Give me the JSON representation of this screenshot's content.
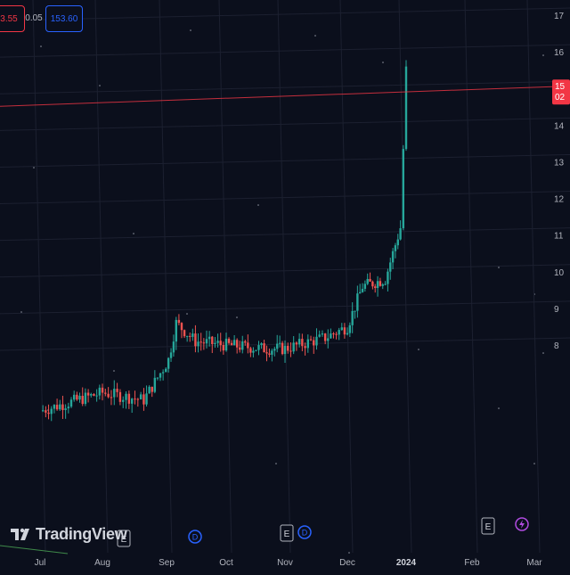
{
  "order_panel": {
    "sell_price": "3.55",
    "spread": "0.05",
    "buy_price": "153.60"
  },
  "watermark": {
    "text": "TradingView"
  },
  "price_axis": {
    "labels": [
      "17",
      "16",
      "15",
      "14",
      "13",
      "12",
      "11",
      "10",
      "9",
      "8"
    ],
    "current_label_top": "15",
    "current_label_bottom": "02"
  },
  "chart_data": {
    "type": "candlestick",
    "y_axis": {
      "ticks": [
        8,
        9,
        10,
        11,
        12,
        13,
        14,
        15,
        16,
        17
      ],
      "unit_note": "tick labels partially cut off at right edge"
    },
    "x_axis": {
      "labels": [
        "Jul",
        "Aug",
        "Sep",
        "Oct",
        "Nov",
        "Dec",
        "2024",
        "Feb",
        "Mar"
      ]
    },
    "current_price_line": 15.0,
    "trend": [
      {
        "date": "Jul",
        "price": 6.2
      },
      {
        "date": "Aug",
        "price": 6.7
      },
      {
        "date": "Aug 20",
        "price": 6.5
      },
      {
        "date": "Sep 01",
        "price": 7.6
      },
      {
        "date": "Sep 05",
        "price": 8.6
      },
      {
        "date": "Sep 15",
        "price": 8.1
      },
      {
        "date": "Oct",
        "price": 8.0
      },
      {
        "date": "Oct 20",
        "price": 7.9
      },
      {
        "date": "Nov",
        "price": 7.9
      },
      {
        "date": "Nov 20",
        "price": 8.2
      },
      {
        "date": "Dec",
        "price": 8.5
      },
      {
        "date": "Dec 08",
        "price": 9.6
      },
      {
        "date": "Dec 20",
        "price": 9.8
      },
      {
        "date": "Dec 28",
        "price": 11.2
      },
      {
        "date": "2024",
        "price": 15.5
      },
      {
        "date": "Jan 06",
        "price": 17.1
      },
      {
        "date": "Jan 14",
        "price": 16.3
      },
      {
        "date": "Jan 22",
        "price": 13.8
      },
      {
        "date": "Jan 28",
        "price": 15.8
      },
      {
        "date": "Feb",
        "price": 15.1
      }
    ],
    "events": [
      {
        "date": "Aug",
        "type": "E"
      },
      {
        "date": "Sep",
        "type": "D"
      },
      {
        "date": "Nov",
        "type": "E"
      },
      {
        "date": "Nov",
        "type": "D"
      },
      {
        "date": "Feb",
        "type": "E"
      },
      {
        "date": "Feb",
        "type": "lightning"
      }
    ],
    "colors": {
      "up": "#26a69a",
      "down": "#ef5350",
      "price_line": "#f23645",
      "background": "#0b0f1c",
      "grid": "#1c2030"
    }
  }
}
